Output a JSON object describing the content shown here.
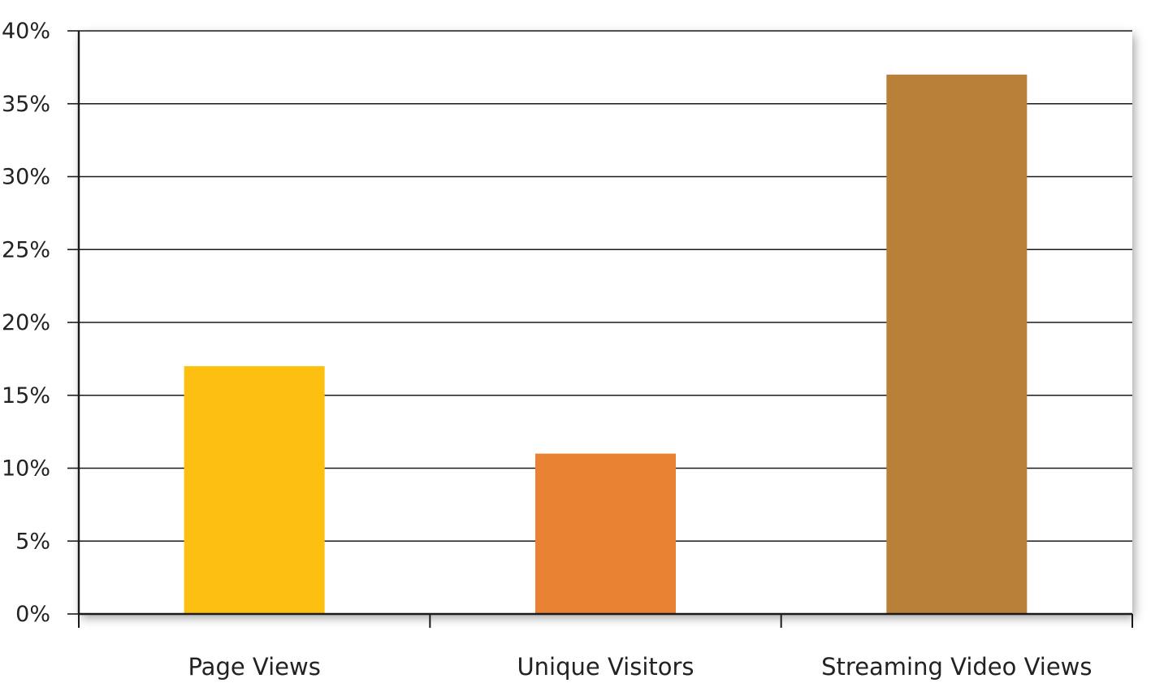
{
  "chart_data": {
    "type": "bar",
    "title": "",
    "xlabel": "",
    "ylabel": "",
    "categories": [
      "Page Views",
      "Unique Visitors",
      "Streaming Video Views"
    ],
    "values": [
      17,
      11,
      37
    ],
    "colors": [
      "#fdc010",
      "#e98232",
      "#b98039"
    ],
    "ylim": [
      0,
      40
    ],
    "yticks": [
      0,
      5,
      10,
      15,
      20,
      25,
      30,
      35,
      40
    ],
    "ytick_labels": [
      "0%",
      "5%",
      "10%",
      "15%",
      "20%",
      "25%",
      "30%",
      "35%",
      "40%"
    ],
    "grid": true,
    "legend": "none"
  }
}
